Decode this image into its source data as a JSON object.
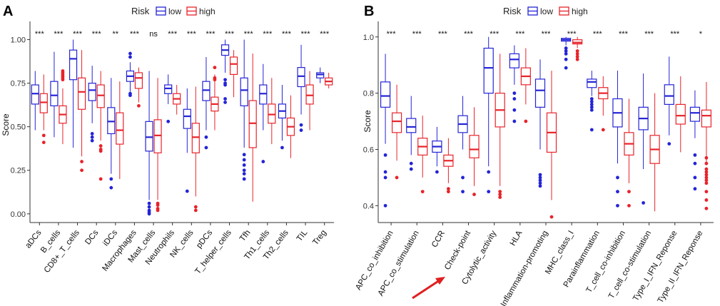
{
  "legend": {
    "title": "Risk",
    "low": "low",
    "high": "high"
  },
  "colors": {
    "low": "#2424d6",
    "high": "#e8232a",
    "axis": "#333333",
    "arrow": "#e01f1f"
  },
  "chart_data": [
    {
      "panel": "A",
      "type": "boxplot",
      "ylabel": "Score",
      "ylim": [
        -0.05,
        1.08
      ],
      "yticks": [
        0.0,
        0.25,
        0.5,
        0.75,
        1.0
      ],
      "ytick_labels": [
        "0.00",
        "0.25",
        "0.50",
        "0.75",
        "1.00"
      ],
      "categories": [
        "aDCs",
        "B_cells",
        "CD8+_T_cells",
        "DCs",
        "iDCs",
        "Macrophages",
        "Mast_cells",
        "Neutrophils",
        "NK_cells",
        "pDCs",
        "T_helper_cells",
        "Tfh",
        "Th1_cells",
        "Th2_cells",
        "TIL",
        "Treg"
      ],
      "significance": [
        "***",
        "***",
        "***",
        "***",
        "**",
        "***",
        "ns",
        "***",
        "***",
        "***",
        "***",
        "***",
        "***",
        "***",
        "***",
        "***"
      ],
      "series": [
        {
          "name": "low",
          "boxes": [
            {
              "q1": 0.63,
              "median": 0.69,
              "q3": 0.74,
              "wl": 0.48,
              "wh": 0.82,
              "outliers": []
            },
            {
              "q1": 0.62,
              "median": 0.68,
              "q3": 0.76,
              "wl": 0.44,
              "wh": 0.93,
              "outliers": []
            },
            {
              "q1": 0.77,
              "median": 0.89,
              "q3": 0.94,
              "wl": 0.38,
              "wh": 1.0,
              "outliers": []
            },
            {
              "q1": 0.65,
              "median": 0.71,
              "q3": 0.75,
              "wl": 0.52,
              "wh": 0.85,
              "outliers": [
                0.46,
                0.44,
                0.42
              ]
            },
            {
              "q1": 0.46,
              "median": 0.53,
              "q3": 0.61,
              "wl": 0.23,
              "wh": 0.78,
              "outliers": [
                0.2,
                0.15
              ]
            },
            {
              "q1": 0.76,
              "median": 0.79,
              "q3": 0.82,
              "wl": 0.7,
              "wh": 0.87,
              "outliers": [
                0.69,
                0.68,
                0.92,
                0.9
              ]
            },
            {
              "q1": 0.36,
              "median": 0.44,
              "q3": 0.53,
              "wl": 0.08,
              "wh": 0.82,
              "outliers": [
                0.06,
                0.04,
                0.02,
                0.01,
                0.0
              ]
            },
            {
              "q1": 0.69,
              "median": 0.72,
              "q3": 0.74,
              "wl": 0.63,
              "wh": 0.8,
              "outliers": [
                0.53
              ]
            },
            {
              "q1": 0.49,
              "median": 0.56,
              "q3": 0.6,
              "wl": 0.35,
              "wh": 0.72,
              "outliers": [
                0.13
              ]
            },
            {
              "q1": 0.65,
              "median": 0.71,
              "q3": 0.76,
              "wl": 0.48,
              "wh": 0.9,
              "outliers": [
                0.44,
                0.38
              ]
            },
            {
              "q1": 0.91,
              "median": 0.94,
              "q3": 0.97,
              "wl": 0.81,
              "wh": 1.0,
              "outliers": [
                0.77,
                0.75,
                0.74,
                0.66,
                0.64
              ]
            },
            {
              "q1": 0.62,
              "median": 0.71,
              "q3": 0.78,
              "wl": 0.38,
              "wh": 1.0,
              "outliers": [
                0.34,
                0.31,
                0.28,
                0.25,
                0.23,
                0.2
              ]
            },
            {
              "q1": 0.63,
              "median": 0.69,
              "q3": 0.74,
              "wl": 0.48,
              "wh": 0.86,
              "outliers": [
                0.3
              ]
            },
            {
              "q1": 0.55,
              "median": 0.59,
              "q3": 0.63,
              "wl": 0.42,
              "wh": 0.74,
              "outliers": [
                0.38
              ]
            },
            {
              "q1": 0.73,
              "median": 0.79,
              "q3": 0.84,
              "wl": 0.57,
              "wh": 0.97,
              "outliers": [
                0.51,
                0.48
              ]
            },
            {
              "q1": 0.78,
              "median": 0.8,
              "q3": 0.81,
              "wl": 0.75,
              "wh": 0.84,
              "outliers": []
            }
          ]
        },
        {
          "name": "high",
          "boxes": [
            {
              "q1": 0.58,
              "median": 0.64,
              "q3": 0.69,
              "wl": 0.48,
              "wh": 0.8,
              "outliers": [
                0.45,
                0.41
              ]
            },
            {
              "q1": 0.52,
              "median": 0.57,
              "q3": 0.62,
              "wl": 0.4,
              "wh": 0.72,
              "outliers": [
                0.82,
                0.81,
                0.8,
                0.79,
                0.78,
                0.77
              ]
            },
            {
              "q1": 0.6,
              "median": 0.7,
              "q3": 0.78,
              "wl": 0.33,
              "wh": 0.94,
              "outliers": [
                0.3,
                0.25
              ]
            },
            {
              "q1": 0.61,
              "median": 0.68,
              "q3": 0.74,
              "wl": 0.42,
              "wh": 0.82,
              "outliers": [
                0.39,
                0.37,
                0.36,
                0.2
              ]
            },
            {
              "q1": 0.4,
              "median": 0.48,
              "q3": 0.58,
              "wl": 0.2,
              "wh": 0.76,
              "outliers": []
            },
            {
              "q1": 0.72,
              "median": 0.78,
              "q3": 0.81,
              "wl": 0.64,
              "wh": 0.84,
              "outliers": [
                0.62
              ]
            },
            {
              "q1": 0.35,
              "median": 0.45,
              "q3": 0.54,
              "wl": 0.08,
              "wh": 0.78,
              "outliers": [
                0.06,
                0.05,
                0.03,
                0.02
              ]
            },
            {
              "q1": 0.63,
              "median": 0.66,
              "q3": 0.69,
              "wl": 0.57,
              "wh": 0.74,
              "outliers": []
            },
            {
              "q1": 0.35,
              "median": 0.44,
              "q3": 0.52,
              "wl": 0.1,
              "wh": 0.73,
              "outliers": [
                0.04,
                0.02
              ]
            },
            {
              "q1": 0.59,
              "median": 0.63,
              "q3": 0.67,
              "wl": 0.48,
              "wh": 0.8,
              "outliers": [
                0.84,
                0.78,
                0.77
              ]
            },
            {
              "q1": 0.8,
              "median": 0.86,
              "q3": 0.9,
              "wl": 0.67,
              "wh": 0.94,
              "outliers": []
            },
            {
              "q1": 0.38,
              "median": 0.52,
              "q3": 0.65,
              "wl": 0.07,
              "wh": 0.92,
              "outliers": []
            },
            {
              "q1": 0.52,
              "median": 0.57,
              "q3": 0.63,
              "wl": 0.4,
              "wh": 0.78,
              "outliers": []
            },
            {
              "q1": 0.45,
              "median": 0.5,
              "q3": 0.55,
              "wl": 0.32,
              "wh": 0.68,
              "outliers": []
            },
            {
              "q1": 0.63,
              "median": 0.68,
              "q3": 0.74,
              "wl": 0.48,
              "wh": 0.82,
              "outliers": []
            },
            {
              "q1": 0.74,
              "median": 0.76,
              "q3": 0.78,
              "wl": 0.72,
              "wh": 0.81,
              "outliers": []
            }
          ]
        }
      ]
    },
    {
      "panel": "B",
      "type": "boxplot",
      "ylabel": "Score",
      "ylim": [
        0.34,
        1.04
      ],
      "yticks": [
        0.4,
        0.6,
        0.8,
        1.0
      ],
      "ytick_labels": [
        "0.4",
        "0.6",
        "0.8",
        "1.0"
      ],
      "categories": [
        "APC_co_inhibition",
        "APC_co_stimulation",
        "CCR",
        "Check-point",
        "Cytolytic_activity",
        "HLA",
        "Inflammation-promoting",
        "MHC_class_I",
        "Parainflammation",
        "T_cell_co-inhibition",
        "T_cell_co-stimulation",
        "Type_I_IFN_Reponse",
        "Type_II_IFN_Reponse"
      ],
      "significance": [
        "***",
        "***",
        "***",
        "***",
        "***",
        "***",
        "***",
        "***",
        "***",
        "***",
        "***",
        "***",
        "*"
      ],
      "series": [
        {
          "name": "low",
          "boxes": [
            {
              "q1": 0.75,
              "median": 0.79,
              "q3": 0.84,
              "wl": 0.62,
              "wh": 0.94,
              "outliers": [
                0.58,
                0.52,
                0.5,
                0.4
              ]
            },
            {
              "q1": 0.66,
              "median": 0.68,
              "q3": 0.71,
              "wl": 0.58,
              "wh": 0.79,
              "outliers": [
                0.55,
                0.53
              ]
            },
            {
              "q1": 0.59,
              "median": 0.61,
              "q3": 0.63,
              "wl": 0.54,
              "wh": 0.68,
              "outliers": [
                0.52
              ]
            },
            {
              "q1": 0.66,
              "median": 0.69,
              "q3": 0.72,
              "wl": 0.6,
              "wh": 0.79,
              "outliers": [
                0.5,
                0.45
              ]
            },
            {
              "q1": 0.8,
              "median": 0.89,
              "q3": 0.96,
              "wl": 0.54,
              "wh": 1.0,
              "outliers": [
                0.52,
                0.45
              ]
            },
            {
              "q1": 0.89,
              "median": 0.92,
              "q3": 0.94,
              "wl": 0.83,
              "wh": 0.97,
              "outliers": [
                0.8,
                0.78,
                0.74,
                0.7
              ]
            },
            {
              "q1": 0.75,
              "median": 0.81,
              "q3": 0.85,
              "wl": 0.6,
              "wh": 0.92,
              "outliers": [
                0.51,
                0.5,
                0.49,
                0.48,
                0.47
              ]
            },
            {
              "q1": 0.985,
              "median": 0.99,
              "q3": 0.995,
              "wl": 0.97,
              "wh": 1.0,
              "outliers": [
                0.96,
                0.95,
                0.94,
                0.92,
                0.89
              ]
            },
            {
              "q1": 0.82,
              "median": 0.84,
              "q3": 0.85,
              "wl": 0.79,
              "wh": 0.88,
              "outliers": [
                0.78,
                0.77,
                0.76,
                0.75,
                0.74,
                0.67
              ]
            },
            {
              "q1": 0.68,
              "median": 0.73,
              "q3": 0.78,
              "wl": 0.55,
              "wh": 0.88,
              "outliers": [
                0.5,
                0.45,
                0.4
              ]
            },
            {
              "q1": 0.67,
              "median": 0.71,
              "q3": 0.75,
              "wl": 0.53,
              "wh": 0.87,
              "outliers": [
                0.41
              ]
            },
            {
              "q1": 0.76,
              "median": 0.79,
              "q3": 0.83,
              "wl": 0.65,
              "wh": 0.93,
              "outliers": [
                0.62
              ]
            },
            {
              "q1": 0.7,
              "median": 0.73,
              "q3": 0.75,
              "wl": 0.64,
              "wh": 0.81,
              "outliers": [
                0.58,
                0.55,
                0.5,
                0.46
              ]
            }
          ]
        },
        {
          "name": "high",
          "boxes": [
            {
              "q1": 0.66,
              "median": 0.7,
              "q3": 0.73,
              "wl": 0.56,
              "wh": 0.83,
              "outliers": [
                0.5
              ]
            },
            {
              "q1": 0.58,
              "median": 0.61,
              "q3": 0.64,
              "wl": 0.5,
              "wh": 0.72,
              "outliers": [
                0.45
              ]
            },
            {
              "q1": 0.54,
              "median": 0.56,
              "q3": 0.58,
              "wl": 0.48,
              "wh": 0.64,
              "outliers": [
                0.46,
                0.45
              ]
            },
            {
              "q1": 0.57,
              "median": 0.6,
              "q3": 0.65,
              "wl": 0.47,
              "wh": 0.75,
              "outliers": [
                0.44
              ]
            },
            {
              "q1": 0.68,
              "median": 0.74,
              "q3": 0.8,
              "wl": 0.47,
              "wh": 0.94,
              "outliers": [
                0.45,
                0.44,
                0.43
              ]
            },
            {
              "q1": 0.83,
              "median": 0.86,
              "q3": 0.89,
              "wl": 0.76,
              "wh": 0.96,
              "outliers": [
                0.7
              ]
            },
            {
              "q1": 0.59,
              "median": 0.66,
              "q3": 0.73,
              "wl": 0.42,
              "wh": 0.88,
              "outliers": [
                0.36
              ]
            },
            {
              "q1": 0.975,
              "median": 0.98,
              "q3": 0.99,
              "wl": 0.96,
              "wh": 1.0,
              "outliers": [
                0.95,
                0.94,
                0.93,
                0.92
              ]
            },
            {
              "q1": 0.78,
              "median": 0.8,
              "q3": 0.82,
              "wl": 0.72,
              "wh": 0.86,
              "outliers": [
                0.67
              ]
            },
            {
              "q1": 0.58,
              "median": 0.62,
              "q3": 0.66,
              "wl": 0.48,
              "wh": 0.78,
              "outliers": [
                0.45,
                0.4
              ]
            },
            {
              "q1": 0.55,
              "median": 0.6,
              "q3": 0.65,
              "wl": 0.38,
              "wh": 0.8,
              "outliers": []
            },
            {
              "q1": 0.69,
              "median": 0.72,
              "q3": 0.76,
              "wl": 0.59,
              "wh": 0.86,
              "outliers": []
            },
            {
              "q1": 0.68,
              "median": 0.72,
              "q3": 0.74,
              "wl": 0.55,
              "wh": 0.84,
              "outliers": [
                0.57,
                0.55,
                0.53,
                0.52,
                0.51,
                0.5,
                0.49,
                0.48,
                0.45,
                0.42,
                0.39
              ]
            }
          ]
        }
      ]
    }
  ]
}
